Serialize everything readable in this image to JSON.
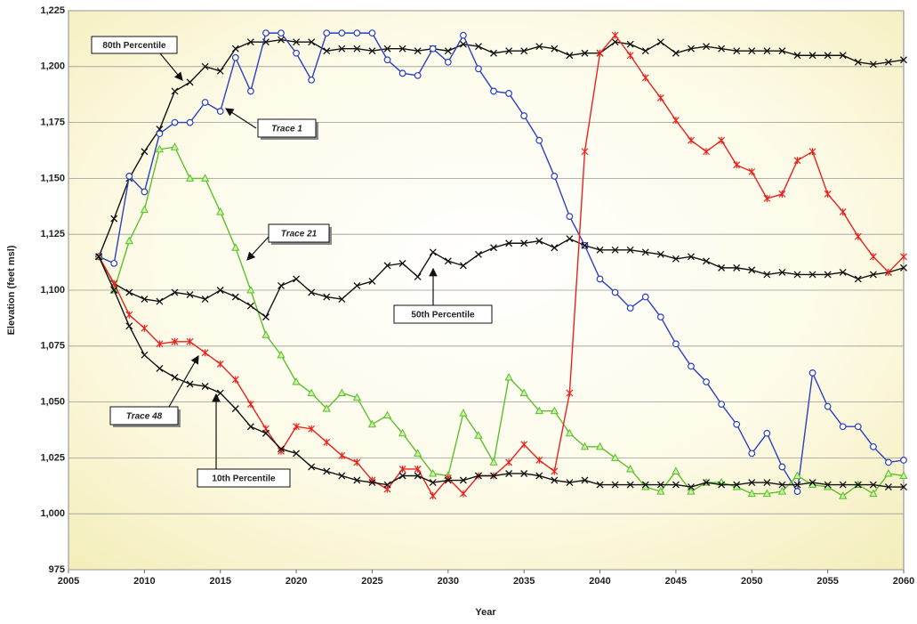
{
  "chart_data": {
    "type": "line",
    "x_label": "Year",
    "y_label": "Elevation (feet msl)",
    "x": [
      2007,
      2008,
      2009,
      2010,
      2011,
      2012,
      2013,
      2014,
      2015,
      2016,
      2017,
      2018,
      2019,
      2020,
      2021,
      2022,
      2023,
      2024,
      2025,
      2026,
      2027,
      2028,
      2029,
      2030,
      2031,
      2032,
      2033,
      2034,
      2035,
      2036,
      2037,
      2038,
      2039,
      2040,
      2041,
      2042,
      2043,
      2044,
      2045,
      2046,
      2047,
      2048,
      2049,
      2050,
      2051,
      2052,
      2053,
      2054,
      2055,
      2056,
      2057,
      2058,
      2059,
      2060
    ],
    "xlim": [
      2005,
      2060
    ],
    "xticks": [
      2005,
      2010,
      2015,
      2020,
      2025,
      2030,
      2035,
      2040,
      2045,
      2050,
      2055,
      2060
    ],
    "ylim": [
      975,
      1225
    ],
    "yticks": [
      {
        "value": 975,
        "label": "975"
      },
      {
        "value": 1000,
        "label": "1,000"
      },
      {
        "value": 1025,
        "label": "1,025"
      },
      {
        "value": 1050,
        "label": "1,050"
      },
      {
        "value": 1075,
        "label": "1,075"
      },
      {
        "value": 1100,
        "label": "1,100"
      },
      {
        "value": 1125,
        "label": "1,125"
      },
      {
        "value": 1150,
        "label": "1,150"
      },
      {
        "value": 1175,
        "label": "1,175"
      },
      {
        "value": 1200,
        "label": "1,200"
      },
      {
        "value": 1225,
        "label": "1,225"
      }
    ],
    "grid": true,
    "series": [
      {
        "name": "80th Percentile",
        "color": "#111111",
        "marker": "x",
        "values": [
          1115,
          1132,
          1150,
          1162,
          1172,
          1189,
          1193,
          1200,
          1198,
          1208,
          1211,
          1211,
          1212,
          1211,
          1211,
          1207,
          1208,
          1208,
          1207,
          1208,
          1208,
          1207,
          1208,
          1207,
          1210,
          1209,
          1206,
          1207,
          1207,
          1209,
          1208,
          1205,
          1206,
          1206,
          1211,
          1210,
          1207,
          1211,
          1206,
          1208,
          1209,
          1208,
          1207,
          1207,
          1207,
          1207,
          1205,
          1205,
          1205,
          1205,
          1202,
          1201,
          1202,
          1203
        ]
      },
      {
        "name": "Trace 1",
        "color": "#2b3fc0",
        "marker": "circle",
        "values": [
          1115,
          1112,
          1151,
          1144,
          1170,
          1175,
          1175,
          1184,
          1180,
          1204,
          1189,
          1215,
          1215,
          1206,
          1194,
          1215,
          1215,
          1215,
          1215,
          1203,
          1197,
          1196,
          1208,
          1202,
          1214,
          1199,
          1189,
          1188,
          1178,
          1167,
          1151,
          1133,
          1120,
          1105,
          1099,
          1092,
          1097,
          1088,
          1076,
          1066,
          1059,
          1049,
          1040,
          1027,
          1036,
          1021,
          1010,
          1063,
          1048,
          1039,
          1039,
          1030,
          1023,
          1024
        ]
      },
      {
        "name": "Trace 21",
        "color": "#5cc02a",
        "marker": "triangle",
        "values": [
          1115,
          1100,
          1122,
          1136,
          1163,
          1164,
          1150,
          1150,
          1135,
          1119,
          1100,
          1080,
          1071,
          1059,
          1054,
          1047,
          1054,
          1052,
          1040,
          1044,
          1036,
          1027,
          1018,
          1017,
          1045,
          1035,
          1023,
          1061,
          1054,
          1046,
          1046,
          1036,
          1030,
          1030,
          1025,
          1020,
          1012,
          1010,
          1019,
          1010,
          1014,
          1014,
          1012,
          1009,
          1009,
          1010,
          1017,
          1013,
          1012,
          1008,
          1013,
          1009,
          1018,
          1017
        ]
      },
      {
        "name": "50th Percentile",
        "color": "#111111",
        "marker": "x",
        "values": [
          1115,
          1103,
          1099,
          1096,
          1095,
          1099,
          1098,
          1096,
          1100,
          1097,
          1093,
          1088,
          1102,
          1105,
          1099,
          1097,
          1096,
          1102,
          1104,
          1111,
          1112,
          1106,
          1117,
          1113,
          1111,
          1116,
          1119,
          1121,
          1121,
          1122,
          1119,
          1123,
          1120,
          1118,
          1118,
          1118,
          1117,
          1116,
          1114,
          1115,
          1113,
          1110,
          1110,
          1109,
          1107,
          1108,
          1107,
          1107,
          1107,
          1108,
          1105,
          1107,
          1108,
          1110
        ]
      },
      {
        "name": "Trace 48",
        "color": "#e8231e",
        "marker": "star",
        "values": [
          1115,
          1103,
          1089,
          1083,
          1076,
          1077,
          1077,
          1072,
          1067,
          1060,
          1049,
          1038,
          1028,
          1039,
          1038,
          1032,
          1026,
          1023,
          1015,
          1011,
          1020,
          1020,
          1008,
          1016,
          1009,
          1017,
          1017,
          1023,
          1031,
          1024,
          1019,
          1054,
          1162,
          1206,
          1214,
          1205,
          1195,
          1186,
          1176,
          1167,
          1162,
          1167,
          1156,
          1153,
          1141,
          1143,
          1158,
          1162,
          1143,
          1135,
          1124,
          1115,
          1108,
          1115
        ]
      },
      {
        "name": "10th Percentile",
        "color": "#111111",
        "marker": "x",
        "values": [
          1115,
          1100,
          1084,
          1071,
          1065,
          1061,
          1058,
          1057,
          1054,
          1047,
          1039,
          1036,
          1029,
          1027,
          1021,
          1019,
          1017,
          1015,
          1014,
          1013,
          1017,
          1017,
          1014,
          1015,
          1015,
          1017,
          1017,
          1018,
          1018,
          1017,
          1015,
          1014,
          1015,
          1013,
          1013,
          1013,
          1013,
          1013,
          1013,
          1012,
          1014,
          1013,
          1013,
          1014,
          1014,
          1013,
          1013,
          1014,
          1013,
          1013,
          1013,
          1013,
          1012,
          1012
        ]
      }
    ]
  }
}
